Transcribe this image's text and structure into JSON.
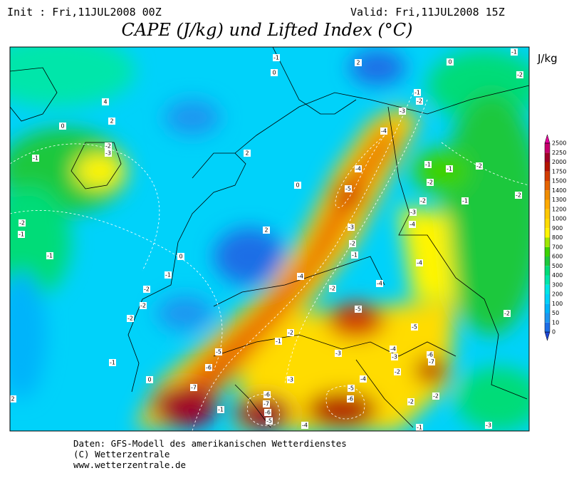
{
  "header": {
    "init": "Init : Fri,11JUL2008 00Z",
    "valid": "Valid: Fri,11JUL2008 15Z",
    "title": "CAPE (J/kg) und Lifted Index (°C)"
  },
  "colorbar": {
    "unit": "J/kg",
    "levels": [
      "0",
      "10",
      "50",
      "100",
      "200",
      "300",
      "400",
      "500",
      "600",
      "700",
      "800",
      "900",
      "1000",
      "1200",
      "1300",
      "1400",
      "1500",
      "1750",
      "2000",
      "2250",
      "2500"
    ],
    "colors": [
      "#1e46d2",
      "#1e6ee6",
      "#1e96f0",
      "#00b4fa",
      "#00d2fa",
      "#00e6e6",
      "#00e6aa",
      "#00dc78",
      "#1ec83c",
      "#3cd200",
      "#a0e600",
      "#fff500",
      "#ffdc00",
      "#ffc800",
      "#ffaa00",
      "#f08c00",
      "#e66400",
      "#d23c00",
      "#b41400",
      "#a00028",
      "#c8006e",
      "#e6009b"
    ]
  },
  "contour_labels": [
    "-1",
    "0",
    "2",
    "0",
    "-1",
    "-2",
    "4",
    "2",
    "0",
    "-1",
    "-2",
    "-3",
    "2",
    "0",
    "-1",
    "-2",
    "-3",
    "-4",
    "-4",
    "-5",
    "-1",
    "-1",
    "-2",
    "-2",
    "-2",
    "-3",
    "-1",
    "-2",
    "-4",
    "-3",
    "-2",
    "-1",
    "-4",
    "2",
    "-4",
    "-4",
    "-2",
    "-5",
    "-5",
    "-2",
    "-2",
    "-1",
    "-1",
    "0",
    "-1",
    "-2",
    "-2",
    "-2",
    "-2",
    "-1",
    "-5",
    "-6",
    "-7",
    "0",
    "-1",
    "-3",
    "-4",
    "-3",
    "-6",
    "-7",
    "-2",
    "-4",
    "-3",
    "-6",
    "-7",
    "-6",
    "-5",
    "-5",
    "-6",
    "-1",
    "-4",
    "-2",
    "-2",
    "-1",
    "-3",
    "2"
  ],
  "footer": {
    "line1": "Daten: GFS-Modell des amerikanischen Wetterdienstes",
    "line2": "(C) Wetterzentrale",
    "line3": "www.wetterzentrale.de"
  }
}
